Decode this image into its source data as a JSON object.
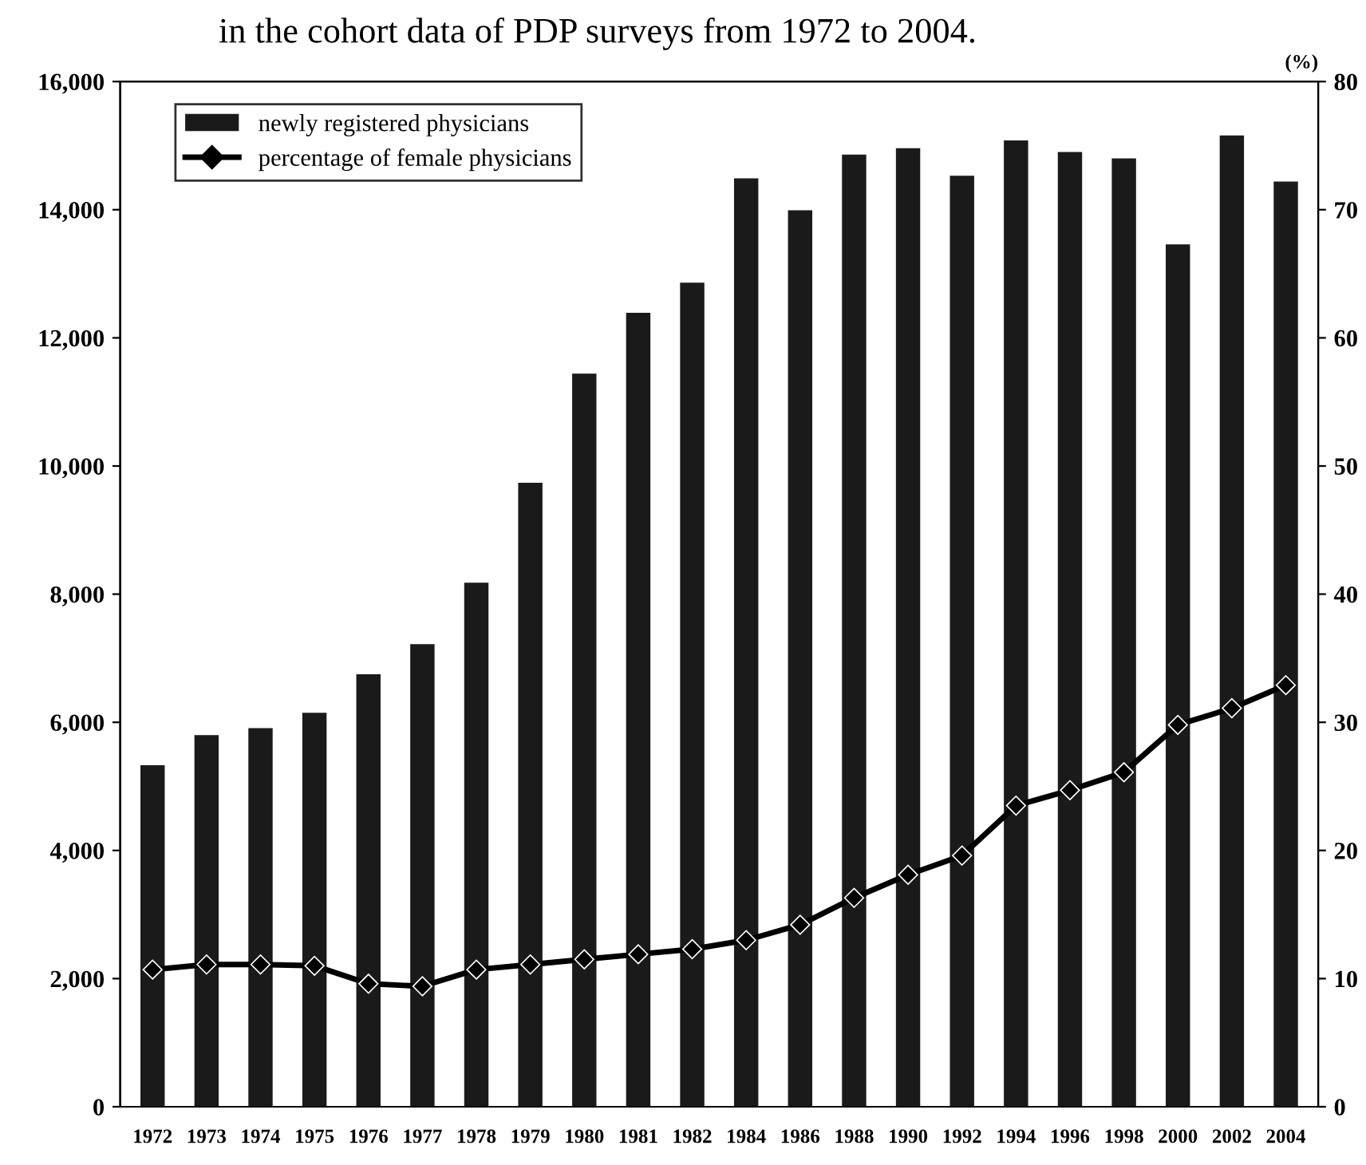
{
  "chart_data": {
    "type": "bar",
    "title": "in the cohort data of PDP surveys from 1972 to 2004.",
    "y2label": "(%)",
    "categories": [
      "1972",
      "1973",
      "1974",
      "1975",
      "1976",
      "1977",
      "1978",
      "1979",
      "1980",
      "1981",
      "1982",
      "1984",
      "1986",
      "1988",
      "1990",
      "1992",
      "1994",
      "1996",
      "1998",
      "2000",
      "2002",
      "2004"
    ],
    "series": [
      {
        "name": "newly registered physicians",
        "color": "#1a1a1a",
        "values": [
          5330,
          5800,
          5910,
          6150,
          6750,
          7220,
          8180,
          9740,
          11440,
          12390,
          12860,
          14490,
          13990,
          14860,
          14960,
          14530,
          15080,
          14900,
          14800,
          13460,
          15160,
          14440
        ]
      },
      {
        "name": "percentage of female physicians",
        "type": "line",
        "axis": "y2",
        "color": "#000000",
        "marker": "diamond",
        "values": [
          10.7,
          11.1,
          11.1,
          11.0,
          9.6,
          9.4,
          10.7,
          11.1,
          11.5,
          11.9,
          12.3,
          13.0,
          14.2,
          16.3,
          18.1,
          19.6,
          23.5,
          24.7,
          26.1,
          29.8,
          31.1,
          32.9
        ]
      }
    ],
    "ylim": [
      0,
      16000
    ],
    "yticks": [
      0,
      {
        "value": 2000,
        "label": "2,000"
      },
      {
        "value": 4000,
        "label": "4,000"
      },
      {
        "value": 6000,
        "label": "6,000"
      },
      {
        "value": 8000,
        "label": "8,000"
      },
      {
        "value": 10000,
        "label": "10,000"
      },
      {
        "value": 12000,
        "label": "12,000"
      },
      {
        "value": 14000,
        "label": "14,000"
      },
      {
        "value": 16000,
        "label": "16,000"
      }
    ],
    "y2lim": [
      0,
      80
    ],
    "y2ticks": [
      0,
      10,
      20,
      30,
      40,
      50,
      60,
      70,
      80
    ],
    "grid": false,
    "legend": "top left"
  }
}
